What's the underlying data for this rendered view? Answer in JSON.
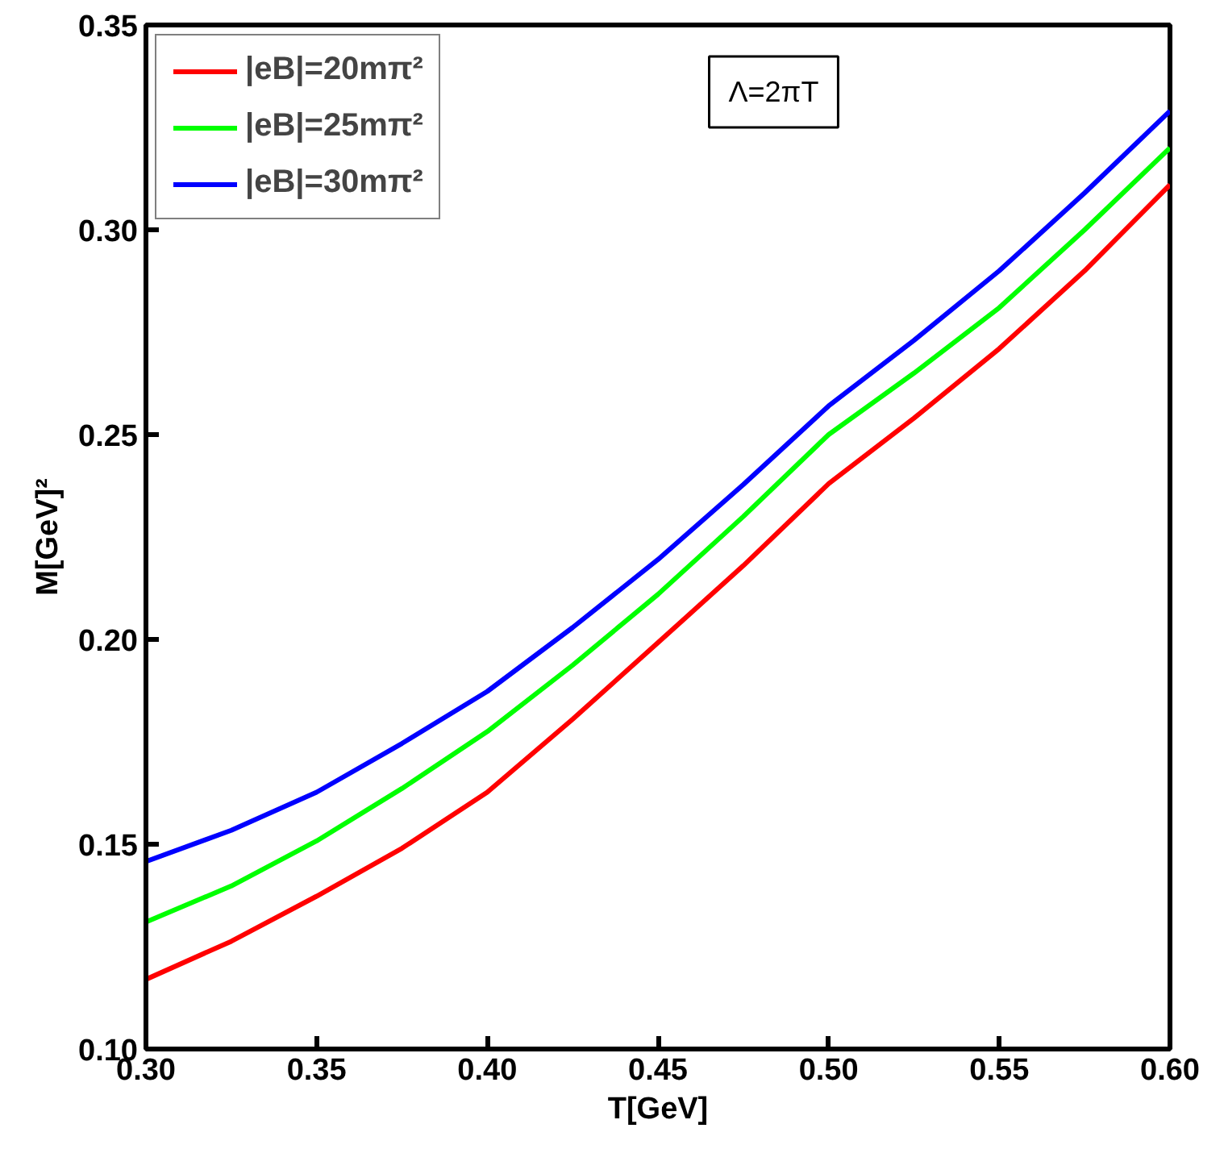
{
  "chart_data": {
    "type": "line",
    "xlabel": "T[GeV]",
    "ylabel": "M[GeV]²",
    "annotations": [
      "Λ=2πT"
    ],
    "x": [
      0.3,
      0.325,
      0.35,
      0.375,
      0.4,
      0.425,
      0.45,
      0.475,
      0.5,
      0.525,
      0.55,
      0.575,
      0.6
    ],
    "series": [
      {
        "name": "|eB|=20mπ²",
        "color": "#ff0000",
        "values": [
          0.117,
          0.1263,
          0.1373,
          0.149,
          0.1627,
          0.1805,
          0.1992,
          0.218,
          0.238,
          0.254,
          0.271,
          0.29,
          0.311
        ]
      },
      {
        "name": "|eB|=25mπ²",
        "color": "#00ff00",
        "values": [
          0.131,
          0.1398,
          0.1508,
          0.1636,
          0.1775,
          0.1937,
          0.211,
          0.23,
          0.25,
          0.265,
          0.281,
          0.3,
          0.32
        ]
      },
      {
        "name": "|eB|=30mπ²",
        "color": "#0000ff",
        "values": [
          0.1458,
          0.1534,
          0.1627,
          0.1746,
          0.1873,
          0.2029,
          0.2195,
          0.2378,
          0.257,
          0.273,
          0.29,
          0.309,
          0.329
        ]
      }
    ],
    "xlim": [
      0.3,
      0.6
    ],
    "ylim": [
      0.1,
      0.35
    ],
    "xticks": [
      {
        "value": 0.3,
        "label": "0.30"
      },
      {
        "value": 0.35,
        "label": "0.35"
      },
      {
        "value": 0.4,
        "label": "0.40"
      },
      {
        "value": 0.45,
        "label": "0.45"
      },
      {
        "value": 0.5,
        "label": "0.50"
      },
      {
        "value": 0.55,
        "label": "0.55"
      },
      {
        "value": 0.6,
        "label": "0.60"
      }
    ],
    "yticks": [
      {
        "value": 0.1,
        "label": "0.10"
      },
      {
        "value": 0.15,
        "label": "0.15"
      },
      {
        "value": 0.2,
        "label": "0.20"
      },
      {
        "value": 0.25,
        "label": "0.25"
      },
      {
        "value": 0.3,
        "label": "0.30"
      },
      {
        "value": 0.35,
        "label": "0.35"
      }
    ],
    "grid": false,
    "legend": "top left",
    "marker": "none",
    "line_style": "solid"
  }
}
